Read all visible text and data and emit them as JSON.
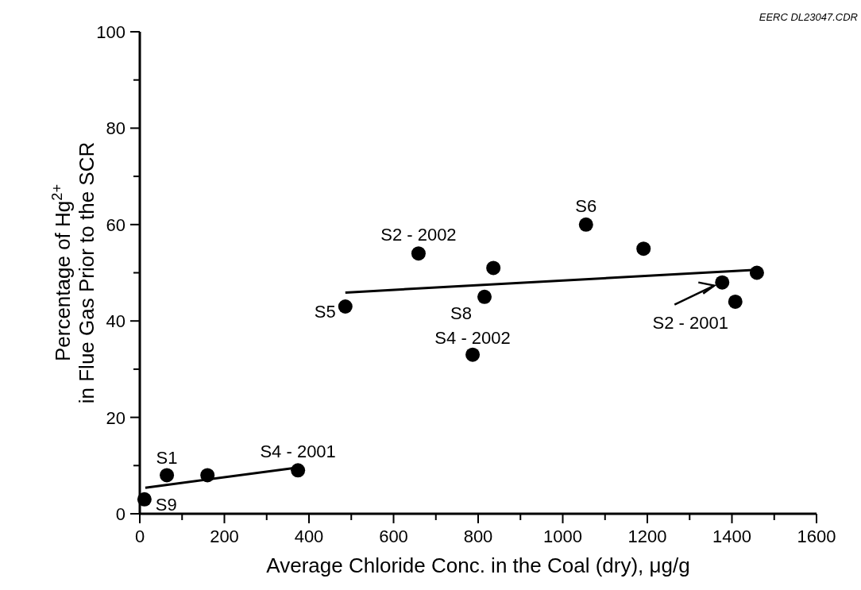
{
  "chart_data": {
    "type": "scatter",
    "xlabel": "Average Chloride Conc. in the Coal (dry), μg/g",
    "ylabel": "Percentage of Hg$^{2+}$\nin Flue Gas Prior to the SCR",
    "xlim": [
      0,
      1600
    ],
    "ylim": [
      0,
      100
    ],
    "xticks": [
      0,
      {
        "value": 100,
        "label": null
      },
      200,
      {
        "value": 300,
        "label": null
      },
      400,
      {
        "value": 500,
        "label": null
      },
      600,
      {
        "value": 700,
        "label": null
      },
      800,
      {
        "value": 900,
        "label": null
      },
      1000,
      {
        "value": 1100,
        "label": null
      },
      1200,
      {
        "value": 1300,
        "label": null
      },
      1400,
      {
        "value": 1500,
        "label": null
      },
      1600
    ],
    "yticks": [
      0,
      {
        "value": 10,
        "label": null
      },
      20,
      {
        "value": 30,
        "label": null
      },
      40,
      {
        "value": 50,
        "label": null
      },
      60,
      {
        "value": 70,
        "label": null
      },
      80,
      {
        "value": 90,
        "label": null
      },
      100
    ],
    "grid": false,
    "marker": "circle",
    "series": [
      {
        "color": "#000000",
        "x": [
          11,
          64,
          160,
          374,
          486,
          659,
          787,
          815,
          836,
          1055,
          1191,
          1377,
          1408,
          1459
        ],
        "values": [
          3,
          8,
          8,
          9,
          43,
          54,
          33,
          45,
          51,
          60,
          55,
          48,
          44,
          50
        ]
      },
      {
        "type": "line",
        "marker": "none",
        "color": "#000000",
        "x": [
          13,
          374
        ],
        "values": [
          5.4,
          9.6
        ]
      },
      {
        "type": "line",
        "marker": "none",
        "color": "#000000",
        "x": [
          486,
          1459
        ],
        "values": [
          45.9,
          50.6
        ]
      }
    ],
    "annotations": [
      {
        "text": "S9",
        "x": 11,
        "y": 3
      },
      {
        "text": "S1",
        "x": 64,
        "y": 8
      },
      {
        "text": "S4 - 2001",
        "x": 374,
        "y": 9
      },
      {
        "text": "S5",
        "x": 486,
        "y": 43
      },
      {
        "text": "S2 - 2002",
        "x": 659,
        "y": 54
      },
      {
        "text": "S4 - 2002",
        "x": 787,
        "y": 33
      },
      {
        "text": "S8",
        "x": 815,
        "y": 45
      },
      {
        "text": "S6",
        "x": 1055,
        "y": 60
      },
      {
        "text": "S2 - 2001",
        "x": 1377,
        "y": 48
      },
      "EERC DL23047.CDR"
    ]
  }
}
